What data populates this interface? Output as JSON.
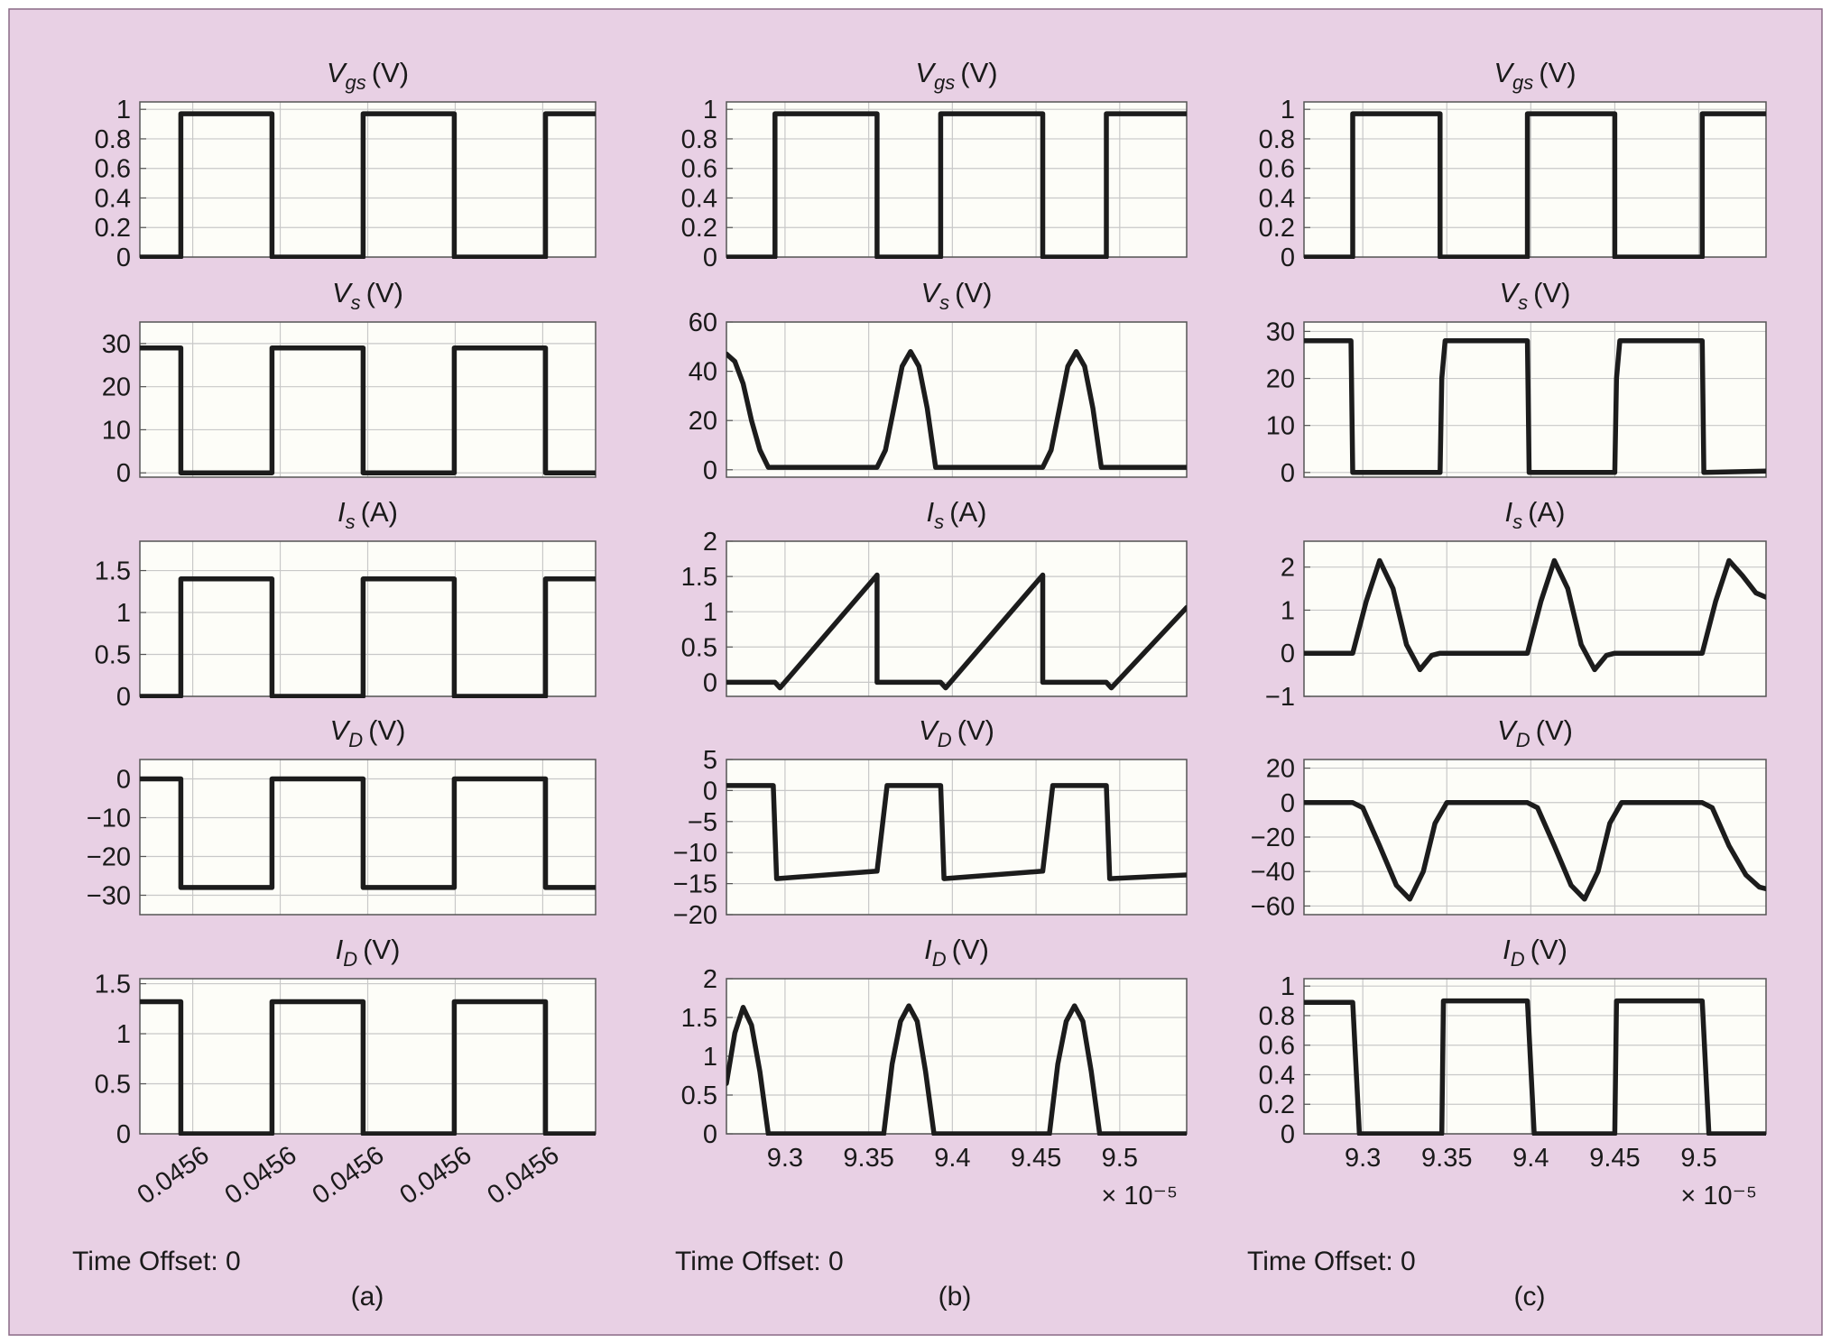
{
  "colors": {
    "background": "#e8d0e4",
    "plot_bg": "#fdfdf8",
    "trace": "#1c1c1c",
    "grid": "#c8c8c8",
    "frame": "#555555"
  },
  "columns": [
    {
      "id": "a",
      "label": "(a)",
      "time_offset": "Time Offset: 0",
      "x_ticks": [
        "0.0456",
        "0.0456",
        "0.0456",
        "0.0456",
        "0.0456"
      ],
      "x_tick_style": "rotated",
      "x_exponent": ""
    },
    {
      "id": "b",
      "label": "(b)",
      "time_offset": "Time Offset: 0",
      "x_ticks": [
        "9.3",
        "9.35",
        "9.4",
        "9.45",
        "9.5"
      ],
      "x_tick_style": "plain",
      "x_exponent": "× 10⁻⁵"
    },
    {
      "id": "c",
      "label": "(c)",
      "time_offset": "Time Offset: 0",
      "x_ticks": [
        "9.3",
        "9.35",
        "9.4",
        "9.45",
        "9.5"
      ],
      "x_tick_style": "plain",
      "x_exponent": "× 10⁻⁵"
    }
  ],
  "chart_data": [
    {
      "column": "a",
      "type": "line",
      "title": "Vgs (V)",
      "title_main": "V",
      "title_sub": "gs",
      "title_unit": "(V)",
      "ylim": [
        0,
        1.05
      ],
      "y_ticks": [
        0,
        0.2,
        0.4,
        0.6,
        0.8,
        1
      ],
      "y_tick_labels": [
        "0",
        "0.2",
        "0.4",
        "0.6",
        "0.8",
        "1"
      ],
      "xlim": [
        0,
        100
      ],
      "x": [
        0,
        9,
        9,
        29,
        29,
        49,
        49,
        69,
        69,
        89,
        89,
        100
      ],
      "y": [
        0,
        0,
        0.97,
        0.97,
        0,
        0,
        0.97,
        0.97,
        0,
        0,
        0.97,
        0.97
      ]
    },
    {
      "column": "a",
      "type": "line",
      "title": "Vs (V)",
      "title_main": "V",
      "title_sub": "s",
      "title_unit": "(V)",
      "ylim": [
        -1,
        35
      ],
      "y_ticks": [
        0,
        10,
        20,
        30
      ],
      "y_tick_labels": [
        "0",
        "10",
        "20",
        "30"
      ],
      "xlim": [
        0,
        100
      ],
      "x": [
        0,
        9,
        9,
        29,
        29,
        49,
        49,
        69,
        69,
        89,
        89,
        100
      ],
      "y": [
        29,
        29,
        0,
        0,
        29,
        29,
        0,
        0,
        29,
        29,
        0,
        0
      ]
    },
    {
      "column": "a",
      "type": "line",
      "title": "Is (A)",
      "title_main": "I",
      "title_sub": "s",
      "title_unit": "(A)",
      "ylim": [
        0,
        1.85
      ],
      "y_ticks": [
        0,
        0.5,
        1,
        1.5
      ],
      "y_tick_labels": [
        "0",
        "0.5",
        "1",
        "1.5"
      ],
      "xlim": [
        0,
        100
      ],
      "x": [
        0,
        9,
        9,
        29,
        29,
        49,
        49,
        69,
        69,
        89,
        89,
        100
      ],
      "y": [
        0,
        0,
        1.4,
        1.4,
        0,
        0,
        1.4,
        1.4,
        0,
        0,
        1.4,
        1.4
      ]
    },
    {
      "column": "a",
      "type": "line",
      "title": "VD (V)",
      "title_main": "V",
      "title_sub": "D",
      "title_unit": "(V)",
      "ylim": [
        -35,
        5
      ],
      "y_ticks": [
        -30,
        -20,
        -10,
        0
      ],
      "y_tick_labels": [
        "−30",
        "−20",
        "−10",
        "0"
      ],
      "xlim": [
        0,
        100
      ],
      "x": [
        0,
        9,
        9,
        29,
        29,
        49,
        49,
        69,
        69,
        89,
        89,
        100
      ],
      "y": [
        0,
        0,
        -28,
        -28,
        0,
        0,
        -28,
        -28,
        0,
        0,
        -28,
        -28
      ]
    },
    {
      "column": "a",
      "type": "line",
      "title": "ID (V)",
      "title_main": "I",
      "title_sub": "D",
      "title_unit": "(V)",
      "ylim": [
        0,
        1.55
      ],
      "y_ticks": [
        0,
        0.5,
        1,
        1.5
      ],
      "y_tick_labels": [
        "0",
        "0.5",
        "1",
        "1.5"
      ],
      "xlim": [
        0,
        100
      ],
      "x": [
        0,
        9,
        9,
        29,
        29,
        49,
        49,
        69,
        69,
        89,
        89,
        100
      ],
      "y": [
        1.32,
        1.32,
        0,
        0,
        1.32,
        1.32,
        0,
        0,
        1.32,
        1.32,
        0,
        0
      ]
    },
    {
      "column": "b",
      "type": "line",
      "title": "Vgs (V)",
      "title_main": "V",
      "title_sub": "gs",
      "title_unit": "(V)",
      "ylim": [
        0,
        1.05
      ],
      "y_ticks": [
        0,
        0.2,
        0.4,
        0.6,
        0.8,
        1
      ],
      "y_tick_labels": [
        "0",
        "0.2",
        "0.4",
        "0.6",
        "0.8",
        "1"
      ],
      "xlim": [
        9.265,
        9.54
      ],
      "x": [
        9.265,
        9.294,
        9.294,
        9.355,
        9.355,
        9.393,
        9.393,
        9.454,
        9.454,
        9.492,
        9.492,
        9.54
      ],
      "y": [
        0,
        0,
        0.97,
        0.97,
        0,
        0,
        0.97,
        0.97,
        0,
        0,
        0.97,
        0.97
      ]
    },
    {
      "column": "b",
      "type": "line",
      "title": "Vs (V)",
      "title_main": "V",
      "title_sub": "s",
      "title_unit": "(V)",
      "ylim": [
        -3,
        60
      ],
      "y_ticks": [
        0,
        20,
        40,
        60
      ],
      "y_tick_labels": [
        "0",
        "20",
        "40",
        "60"
      ],
      "xlim": [
        9.265,
        9.54
      ],
      "x": [
        9.265,
        9.27,
        9.275,
        9.28,
        9.285,
        9.29,
        9.355,
        9.36,
        9.365,
        9.37,
        9.375,
        9.38,
        9.385,
        9.39,
        9.454,
        9.459,
        9.464,
        9.469,
        9.474,
        9.479,
        9.484,
        9.489,
        9.54
      ],
      "y": [
        47,
        44,
        35,
        20,
        8,
        1,
        1,
        8,
        25,
        42,
        48,
        42,
        25,
        1,
        1,
        8,
        25,
        42,
        48,
        42,
        25,
        1,
        1
      ]
    },
    {
      "column": "b",
      "type": "line",
      "title": "Is (A)",
      "title_main": "I",
      "title_sub": "s",
      "title_unit": "(A)",
      "ylim": [
        -0.2,
        2.0
      ],
      "y_ticks": [
        0,
        0.5,
        1,
        1.5,
        2
      ],
      "y_tick_labels": [
        "0",
        "0.5",
        "1",
        "1.5",
        "2"
      ],
      "xlim": [
        9.265,
        9.54
      ],
      "x": [
        9.265,
        9.294,
        9.297,
        9.355,
        9.355,
        9.393,
        9.396,
        9.454,
        9.454,
        9.492,
        9.495,
        9.54
      ],
      "y": [
        0,
        0,
        -0.08,
        1.52,
        0,
        0,
        -0.08,
        1.52,
        0,
        0,
        -0.08,
        1.06
      ]
    },
    {
      "column": "b",
      "type": "line",
      "title": "VD (V)",
      "title_main": "V",
      "title_sub": "D",
      "title_unit": "(V)",
      "ylim": [
        -20,
        5
      ],
      "y_ticks": [
        -20,
        -15,
        -10,
        -5,
        0,
        5
      ],
      "y_tick_labels": [
        "−20",
        "−15",
        "−10",
        "−5",
        "0",
        "5"
      ],
      "xlim": [
        9.265,
        9.54
      ],
      "x": [
        9.265,
        9.293,
        9.295,
        9.355,
        9.361,
        9.393,
        9.395,
        9.454,
        9.46,
        9.492,
        9.494,
        9.54
      ],
      "y": [
        0.8,
        0.8,
        -14.2,
        -13,
        0.8,
        0.8,
        -14.2,
        -13,
        0.8,
        0.8,
        -14.2,
        -13.6
      ]
    },
    {
      "column": "b",
      "type": "line",
      "title": "ID (V)",
      "title_main": "I",
      "title_sub": "D",
      "title_unit": "(V)",
      "ylim": [
        0,
        2.0
      ],
      "y_ticks": [
        0,
        0.5,
        1,
        1.5,
        2
      ],
      "y_tick_labels": [
        "0",
        "0.5",
        "1",
        "1.5",
        "2"
      ],
      "xlim": [
        9.265,
        9.54
      ],
      "x": [
        9.265,
        9.27,
        9.275,
        9.28,
        9.285,
        9.29,
        9.359,
        9.364,
        9.369,
        9.374,
        9.379,
        9.384,
        9.389,
        9.458,
        9.463,
        9.468,
        9.473,
        9.478,
        9.483,
        9.488,
        9.54
      ],
      "y": [
        0.65,
        1.3,
        1.63,
        1.4,
        0.8,
        0,
        0,
        0.9,
        1.45,
        1.65,
        1.45,
        0.8,
        0,
        0,
        0.9,
        1.45,
        1.65,
        1.45,
        0.8,
        0,
        0
      ]
    },
    {
      "column": "c",
      "type": "line",
      "title": "Vgs (V)",
      "title_main": "V",
      "title_sub": "gs",
      "title_unit": "(V)",
      "ylim": [
        0,
        1.05
      ],
      "y_ticks": [
        0,
        0.2,
        0.4,
        0.6,
        0.8,
        1
      ],
      "y_tick_labels": [
        "0",
        "0.2",
        "0.4",
        "0.6",
        "0.8",
        "1"
      ],
      "xlim": [
        9.265,
        9.54
      ],
      "x": [
        9.265,
        9.294,
        9.294,
        9.346,
        9.346,
        9.398,
        9.398,
        9.45,
        9.45,
        9.502,
        9.502,
        9.54
      ],
      "y": [
        0,
        0,
        0.97,
        0.97,
        0,
        0,
        0.97,
        0.97,
        0,
        0,
        0.97,
        0.97
      ]
    },
    {
      "column": "c",
      "type": "line",
      "title": "Vs (V)",
      "title_main": "V",
      "title_sub": "s",
      "title_unit": "(V)",
      "ylim": [
        -1,
        32
      ],
      "y_ticks": [
        0,
        10,
        20,
        30
      ],
      "y_tick_labels": [
        "0",
        "10",
        "20",
        "30"
      ],
      "xlim": [
        9.265,
        9.54
      ],
      "x": [
        9.265,
        9.293,
        9.294,
        9.346,
        9.347,
        9.349,
        9.398,
        9.399,
        9.45,
        9.451,
        9.453,
        9.502,
        9.503,
        9.54
      ],
      "y": [
        28,
        28,
        0,
        0,
        20,
        28,
        28,
        0,
        0,
        20,
        28,
        28,
        0,
        0.3
      ]
    },
    {
      "column": "c",
      "type": "line",
      "title": "Is (A)",
      "title_main": "I",
      "title_sub": "s",
      "title_unit": "(A)",
      "ylim": [
        -1,
        2.6
      ],
      "y_ticks": [
        -1,
        0,
        1,
        2
      ],
      "y_tick_labels": [
        "−1",
        "0",
        "1",
        "2"
      ],
      "xlim": [
        9.265,
        9.54
      ],
      "x": [
        9.265,
        9.294,
        9.302,
        9.31,
        9.318,
        9.326,
        9.334,
        9.341,
        9.346,
        9.398,
        9.406,
        9.414,
        9.422,
        9.43,
        9.438,
        9.445,
        9.45,
        9.502,
        9.51,
        9.518,
        9.526,
        9.534,
        9.54
      ],
      "y": [
        0,
        0,
        1.2,
        2.15,
        1.5,
        0.2,
        -0.38,
        -0.05,
        0,
        0,
        1.2,
        2.15,
        1.5,
        0.2,
        -0.38,
        -0.05,
        0,
        0,
        1.2,
        2.15,
        1.8,
        1.4,
        1.3
      ]
    },
    {
      "column": "c",
      "type": "line",
      "title": "VD (V)",
      "title_main": "V",
      "title_sub": "D",
      "title_unit": "(V)",
      "ylim": [
        -65,
        25
      ],
      "y_ticks": [
        -60,
        -40,
        -20,
        0,
        20
      ],
      "y_tick_labels": [
        "−60",
        "−40",
        "−20",
        "0",
        "20"
      ],
      "xlim": [
        9.265,
        9.54
      ],
      "x": [
        9.265,
        9.294,
        9.3,
        9.31,
        9.32,
        9.328,
        9.336,
        9.343,
        9.35,
        9.398,
        9.404,
        9.414,
        9.424,
        9.432,
        9.44,
        9.447,
        9.454,
        9.502,
        9.508,
        9.518,
        9.528,
        9.536,
        9.54
      ],
      "y": [
        0,
        0,
        -3,
        -25,
        -48,
        -56,
        -40,
        -12,
        0,
        0,
        -3,
        -25,
        -48,
        -56,
        -40,
        -12,
        0,
        0,
        -3,
        -25,
        -42,
        -49,
        -50
      ]
    },
    {
      "column": "c",
      "type": "line",
      "title": "ID (V)",
      "title_main": "I",
      "title_sub": "D",
      "title_unit": "(V)",
      "ylim": [
        0,
        1.05
      ],
      "y_ticks": [
        0,
        0.2,
        0.4,
        0.6,
        0.8,
        1
      ],
      "y_tick_labels": [
        "0",
        "0.2",
        "0.4",
        "0.6",
        "0.8",
        "1"
      ],
      "xlim": [
        9.265,
        9.54
      ],
      "x": [
        9.265,
        9.294,
        9.298,
        9.347,
        9.348,
        9.398,
        9.402,
        9.45,
        9.451,
        9.502,
        9.506,
        9.54
      ],
      "y": [
        0.89,
        0.89,
        0,
        0,
        0.9,
        0.9,
        0,
        0,
        0.9,
        0.9,
        0,
        0
      ]
    }
  ]
}
